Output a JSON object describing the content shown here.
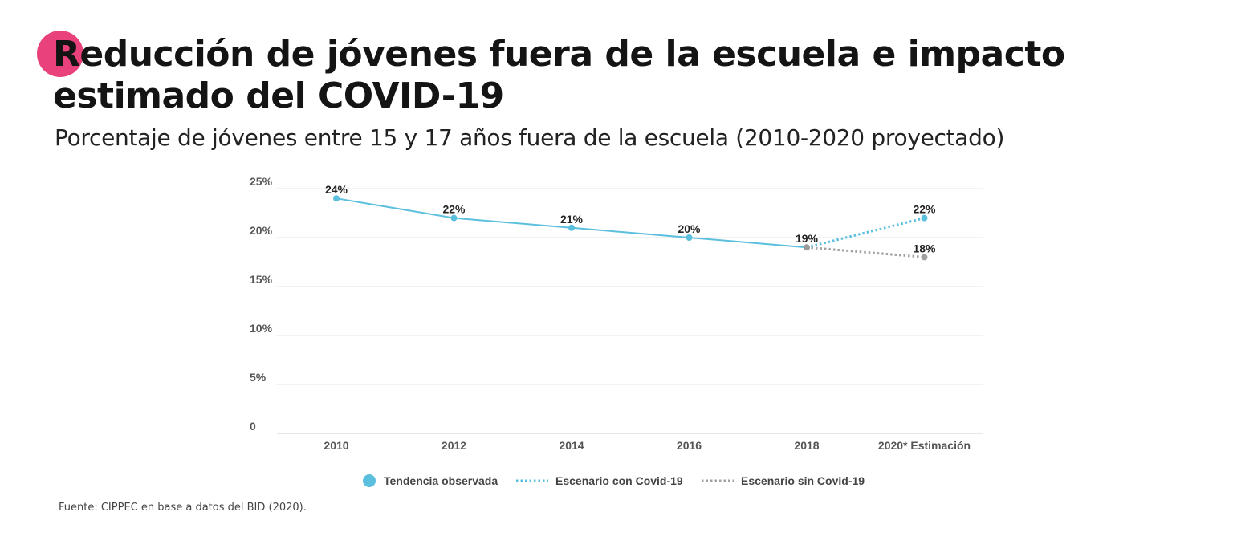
{
  "header": {
    "title_line1": "Reducción de jóvenes fuera de la escuela e impacto",
    "title_line2": "estimado del COVID-19",
    "subtitle": "Porcentaje de jóvenes entre 15 y 17 años fuera de la escuela (2010-2020 proyectado)",
    "accent_color": "#e8417c"
  },
  "footer": {
    "source": "Fuente: CIPPEC en base a datos del BID (2020)."
  },
  "chart_data": {
    "type": "line",
    "title": "",
    "xlabel": "",
    "ylabel": "",
    "categories": [
      "2010",
      "2012",
      "2014",
      "2016",
      "2018",
      "2020* Estimación"
    ],
    "ylim": [
      0,
      25
    ],
    "y_ticks": [
      {
        "value": 0,
        "label": "0"
      },
      {
        "value": 5,
        "label": "5%"
      },
      {
        "value": 10,
        "label": "10%"
      },
      {
        "value": 15,
        "label": "15%"
      },
      {
        "value": 20,
        "label": "20%"
      },
      {
        "value": 25,
        "label": "25%"
      }
    ],
    "grid": true,
    "legend_position": "bottom",
    "series": [
      {
        "name": "Tendencia observada",
        "style": "solid-with-markers",
        "color": "#5bc0de",
        "points": [
          {
            "x": "2010",
            "y": 24,
            "label": "24%"
          },
          {
            "x": "2012",
            "y": 22,
            "label": "22%"
          },
          {
            "x": "2014",
            "y": 21,
            "label": "21%"
          },
          {
            "x": "2016",
            "y": 20,
            "label": "20%"
          },
          {
            "x": "2018",
            "y": 19,
            "label": "19%"
          }
        ]
      },
      {
        "name": "Escenario con Covid-19",
        "style": "dotted",
        "color": "#5bc0de",
        "points": [
          {
            "x": "2018",
            "y": 19,
            "label": ""
          },
          {
            "x": "2020* Estimación",
            "y": 22,
            "label": "22%"
          }
        ]
      },
      {
        "name": "Escenario sin Covid-19",
        "style": "dotted",
        "color": "#a0a0a0",
        "points": [
          {
            "x": "2018",
            "y": 19,
            "label": ""
          },
          {
            "x": "2020* Estimación",
            "y": 18,
            "label": "18%"
          }
        ]
      }
    ]
  }
}
